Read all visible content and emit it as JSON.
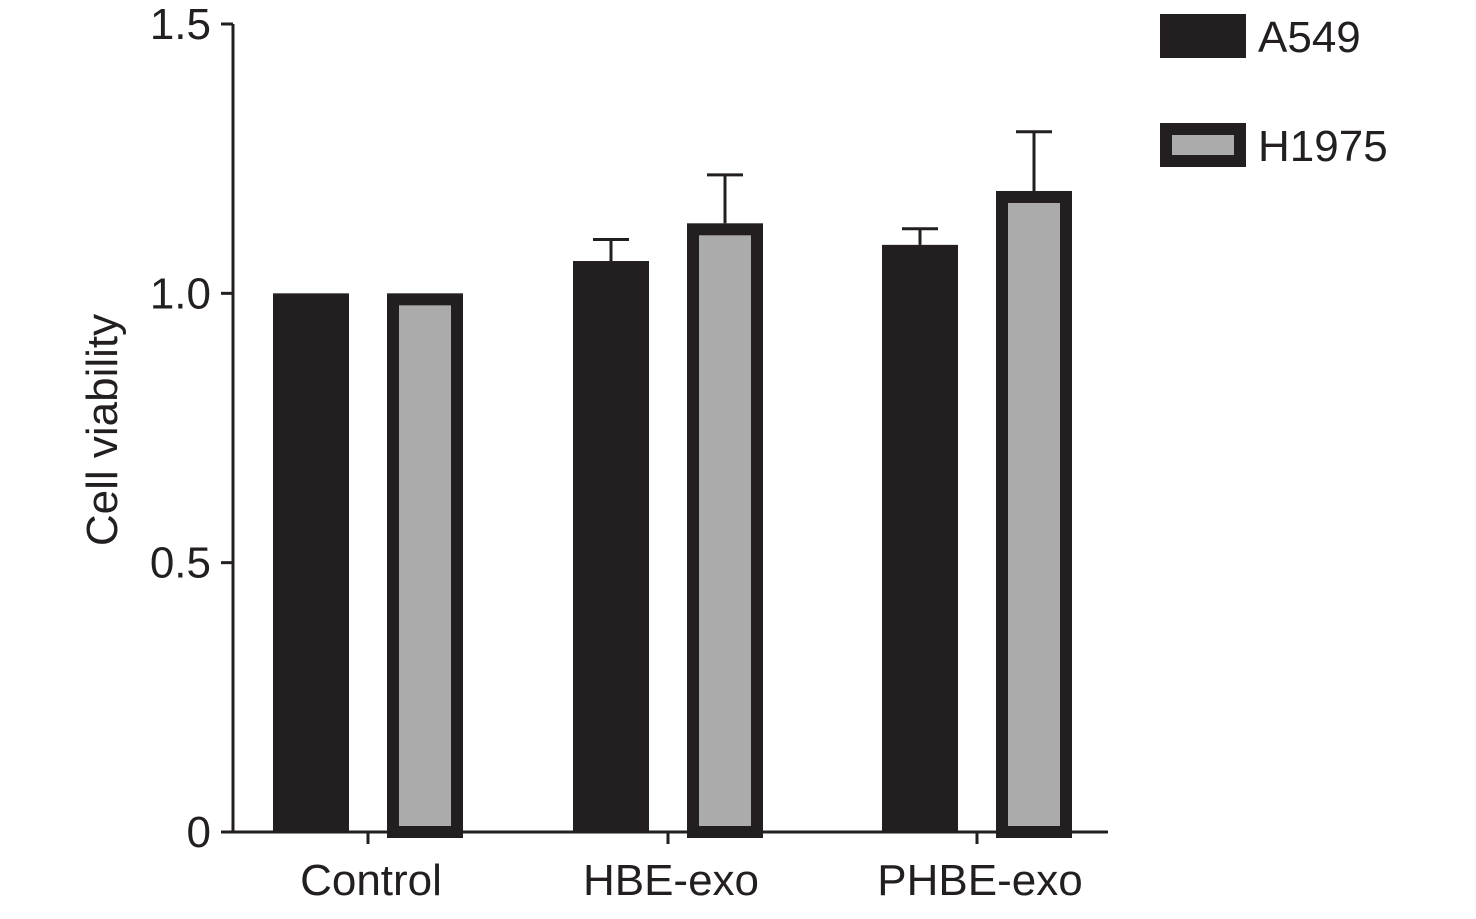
{
  "chart_data": {
    "type": "bar",
    "title": "",
    "xlabel": "",
    "ylabel": "Cell viability",
    "ylim": [
      0,
      1.5
    ],
    "yticks": [
      0,
      0.5,
      1.0,
      1.5
    ],
    "ytick_labels": [
      "0",
      "0.5",
      "1.0",
      "1.5"
    ],
    "categories": [
      "Control",
      "HBE-exo",
      "PHBE-exo"
    ],
    "series": [
      {
        "name": "A549",
        "values": [
          1.0,
          1.06,
          1.09
        ],
        "errors": [
          0,
          0.04,
          0.03
        ]
      },
      {
        "name": "H1975",
        "values": [
          1.0,
          1.13,
          1.19
        ],
        "errors": [
          0,
          0.09,
          0.11
        ]
      }
    ],
    "grid": false,
    "legend_position": "top-right"
  },
  "colors": {
    "axis": "#231f20",
    "a549_fill": "#231f20",
    "h1975_fill": "#acabab",
    "h1975_border": "#231f20"
  }
}
